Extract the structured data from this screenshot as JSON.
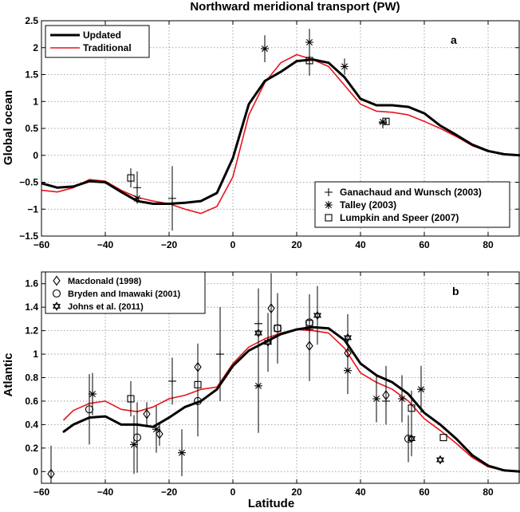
{
  "figure": {
    "title": "Northward meridional transport (PW)",
    "xlabel": "Latitude"
  },
  "colors": {
    "updated": "#000000",
    "traditional": "#e8141b",
    "obs": "#000000",
    "grid": "#8c8c8c"
  },
  "chart_data": [
    {
      "type": "line",
      "panel_label": "a",
      "ylabel": "Global ocean",
      "xlim": [
        -60,
        90
      ],
      "ylim": [
        -1.5,
        2.5
      ],
      "xticks": [
        -60,
        -40,
        -20,
        0,
        20,
        40,
        60,
        80
      ],
      "yticks": [
        -1.5,
        -1,
        -0.5,
        0,
        0.5,
        1,
        1.5,
        2,
        2.5
      ],
      "ytick_labels": [
        "−1.5",
        "−1",
        "−0.5",
        "0",
        "0.5",
        "1",
        "1.5",
        "2",
        "2.5"
      ],
      "xtick_labels": [
        "−60",
        "−40",
        "−20",
        "0",
        "20",
        "40",
        "60",
        "80"
      ],
      "grid": true,
      "legend_lines_position": "top-left",
      "legend_obs_position": "bottom-right",
      "series": [
        {
          "name": "Updated",
          "style": "line",
          "x": [
            -60,
            -55,
            -50,
            -45,
            -40,
            -35,
            -30,
            -25,
            -20,
            -15,
            -10,
            -5,
            0,
            5,
            10,
            15,
            20,
            25,
            30,
            35,
            40,
            45,
            50,
            55,
            60,
            65,
            70,
            75,
            80,
            85,
            90
          ],
          "y": [
            -0.52,
            -0.6,
            -0.58,
            -0.48,
            -0.5,
            -0.68,
            -0.85,
            -0.9,
            -0.9,
            -0.88,
            -0.85,
            -0.7,
            -0.05,
            0.95,
            1.38,
            1.55,
            1.75,
            1.78,
            1.72,
            1.45,
            1.05,
            0.93,
            0.93,
            0.9,
            0.78,
            0.55,
            0.38,
            0.2,
            0.08,
            0.02,
            0.0
          ]
        },
        {
          "name": "Traditional",
          "style": "line",
          "x": [
            -60,
            -55,
            -50,
            -45,
            -40,
            -35,
            -30,
            -25,
            -20,
            -15,
            -10,
            -5,
            0,
            5,
            10,
            15,
            20,
            25,
            30,
            35,
            40,
            45,
            50,
            55,
            60,
            65,
            70,
            75,
            80,
            85,
            90
          ],
          "y": [
            -0.65,
            -0.68,
            -0.6,
            -0.45,
            -0.48,
            -0.65,
            -0.78,
            -0.85,
            -0.9,
            -1.0,
            -1.08,
            -0.95,
            -0.4,
            0.75,
            1.35,
            1.72,
            1.87,
            1.78,
            1.65,
            1.3,
            0.95,
            0.82,
            0.8,
            0.75,
            0.63,
            0.5,
            0.35,
            0.18,
            0.07,
            0.02,
            0.0
          ]
        },
        {
          "name": "Ganachaud and Wunsch (2003)",
          "style": "plus",
          "points": [
            {
              "x": -30,
              "y": -0.6,
              "err": 0.3
            },
            {
              "x": -19,
              "y": -0.8,
              "err": 0.6
            },
            {
              "x": 24,
              "y": 1.78,
              "err": 0.3
            },
            {
              "x": 47,
              "y": 0.6,
              "err": 0.1
            }
          ]
        },
        {
          "name": "Talley (2003)",
          "style": "asterisk",
          "points": [
            {
              "x": -30,
              "y": -0.8,
              "err": 0.0
            },
            {
              "x": 10,
              "y": 1.98,
              "err": 0.25
            },
            {
              "x": 24,
              "y": 2.1,
              "err": 0.25
            },
            {
              "x": 35,
              "y": 1.65,
              "err": 0.15
            },
            {
              "x": 47,
              "y": 0.62,
              "err": 0.0
            }
          ]
        },
        {
          "name": "Lumpkin and Speer (2007)",
          "style": "square",
          "points": [
            {
              "x": -32,
              "y": -0.42,
              "err": 0.18
            },
            {
              "x": 24,
              "y": 1.76,
              "err": 0.25
            },
            {
              "x": 48,
              "y": 0.63,
              "err": 0.05
            }
          ]
        }
      ]
    },
    {
      "type": "line",
      "panel_label": "b",
      "ylabel": "Atlantic",
      "xlim": [
        -60,
        90
      ],
      "ylim": [
        -0.1,
        1.7
      ],
      "xticks": [
        -60,
        -40,
        -20,
        0,
        20,
        40,
        60,
        80
      ],
      "yticks": [
        0,
        0.2,
        0.4,
        0.6,
        0.8,
        1,
        1.2,
        1.4,
        1.6
      ],
      "ytick_labels": [
        "0",
        "0.2",
        "0.4",
        "0.6",
        "0.8",
        "1",
        "1.2",
        "1.4",
        "1.6"
      ],
      "xtick_labels": [
        "−60",
        "−40",
        "−20",
        "0",
        "20",
        "40",
        "60",
        "80"
      ],
      "grid": true,
      "legend_obs_position": "top-left",
      "series": [
        {
          "name": "Updated",
          "style": "line",
          "x": [
            -53,
            -50,
            -45,
            -40,
            -35,
            -30,
            -25,
            -20,
            -15,
            -10,
            -5,
            0,
            5,
            10,
            15,
            20,
            25,
            30,
            35,
            40,
            45,
            50,
            55,
            60,
            65,
            70,
            75,
            80,
            85,
            90
          ],
          "y": [
            0.34,
            0.4,
            0.46,
            0.47,
            0.4,
            0.4,
            0.38,
            0.46,
            0.55,
            0.6,
            0.7,
            0.9,
            1.03,
            1.1,
            1.17,
            1.21,
            1.23,
            1.22,
            1.12,
            0.92,
            0.82,
            0.76,
            0.66,
            0.5,
            0.4,
            0.28,
            0.14,
            0.05,
            0.01,
            0.0
          ]
        },
        {
          "name": "Traditional",
          "style": "line",
          "x": [
            -53,
            -50,
            -45,
            -40,
            -35,
            -30,
            -25,
            -20,
            -15,
            -10,
            -5,
            0,
            5,
            10,
            15,
            20,
            25,
            30,
            35,
            40,
            45,
            50,
            55,
            60,
            65,
            70,
            75,
            80,
            85,
            90
          ],
          "y": [
            0.44,
            0.52,
            0.58,
            0.6,
            0.53,
            0.51,
            0.55,
            0.62,
            0.65,
            0.7,
            0.72,
            0.92,
            1.06,
            1.13,
            1.18,
            1.21,
            1.2,
            1.18,
            1.05,
            0.84,
            0.76,
            0.7,
            0.6,
            0.45,
            0.35,
            0.24,
            0.12,
            0.04,
            0.01,
            0.0
          ]
        },
        {
          "name": "Macdonald (1998)",
          "style": "diamond",
          "points": [
            {
              "x": -57,
              "y": -0.02,
              "err": 0.24
            },
            {
              "x": -27,
              "y": 0.49,
              "err": 0.1
            },
            {
              "x": -23,
              "y": 0.32,
              "err": 0.1
            },
            {
              "x": -11,
              "y": 0.89,
              "err": 0.2
            },
            {
              "x": 12,
              "y": 1.39,
              "err": 0.3
            },
            {
              "x": 24,
              "y": 1.07,
              "err": 0.3
            },
            {
              "x": 36,
              "y": 1.01,
              "err": 0.2
            },
            {
              "x": 48,
              "y": 0.65,
              "err": 0.25
            }
          ]
        },
        {
          "name": "Bryden and Imawaki (2001)",
          "style": "circle",
          "points": [
            {
              "x": -45,
              "y": 0.53,
              "err": 0.3
            },
            {
              "x": -30,
              "y": 0.29,
              "err": 0.3
            },
            {
              "x": -11,
              "y": 0.6,
              "err": 0.3
            },
            {
              "x": 14,
              "y": 1.22,
              "err": 0.3
            },
            {
              "x": 24,
              "y": 1.27,
              "err": 0.2
            },
            {
              "x": 55,
              "y": 0.28,
              "err": 0.2
            }
          ]
        },
        {
          "name": "Johns et al. (2011)",
          "style": "star",
          "points": [
            {
              "x": 8,
              "y": 1.18,
              "err": 0.2
            },
            {
              "x": 11,
              "y": 1.1,
              "err": 0.25
            },
            {
              "x": 26.5,
              "y": 1.33,
              "err": 0.25
            },
            {
              "x": 36,
              "y": 1.14,
              "err": 0.2
            },
            {
              "x": 56,
              "y": 0.28,
              "err": 0.15
            },
            {
              "x": 65,
              "y": 0.1,
              "err": 0.0
            }
          ]
        },
        {
          "name": "Talley (2003)",
          "style": "asterisk",
          "points": [
            {
              "x": -44,
              "y": 0.66,
              "err": 0.18
            },
            {
              "x": -31,
              "y": 0.23,
              "err": 0.25
            },
            {
              "x": -24,
              "y": 0.36,
              "err": 0.2
            },
            {
              "x": -16,
              "y": 0.16,
              "err": 0.2
            },
            {
              "x": 8,
              "y": 0.73,
              "err": 0.4
            },
            {
              "x": 36,
              "y": 0.86,
              "err": 0.2
            },
            {
              "x": 45,
              "y": 0.62,
              "err": 0.2
            },
            {
              "x": 53,
              "y": 0.62,
              "err": 0.2
            },
            {
              "x": 59,
              "y": 0.7,
              "err": 0.2
            }
          ]
        },
        {
          "name": "Ganachaud and Wunsch (2003)",
          "style": "plus",
          "points": [
            {
              "x": -19,
              "y": 0.77,
              "err": 0.2
            },
            {
              "x": -4,
              "y": 1.0,
              "err": 0.4
            },
            {
              "x": 8,
              "y": 1.26,
              "err": 0.3
            },
            {
              "x": 24,
              "y": 1.21,
              "err": 0.3
            },
            {
              "x": 48,
              "y": 0.6,
              "err": 0.1
            }
          ]
        },
        {
          "name": "Lumpkin and Speer (2007)",
          "style": "square",
          "points": [
            {
              "x": -32,
              "y": 0.62,
              "err": 0.15
            },
            {
              "x": -11,
              "y": 0.74,
              "err": 0.2
            },
            {
              "x": 14,
              "y": 1.22,
              "err": 0.25
            },
            {
              "x": 24,
              "y": 1.26,
              "err": 0.2
            },
            {
              "x": 56,
              "y": 0.54,
              "err": 0.15
            },
            {
              "x": 66,
              "y": 0.29,
              "err": 0.0
            }
          ]
        }
      ]
    }
  ]
}
